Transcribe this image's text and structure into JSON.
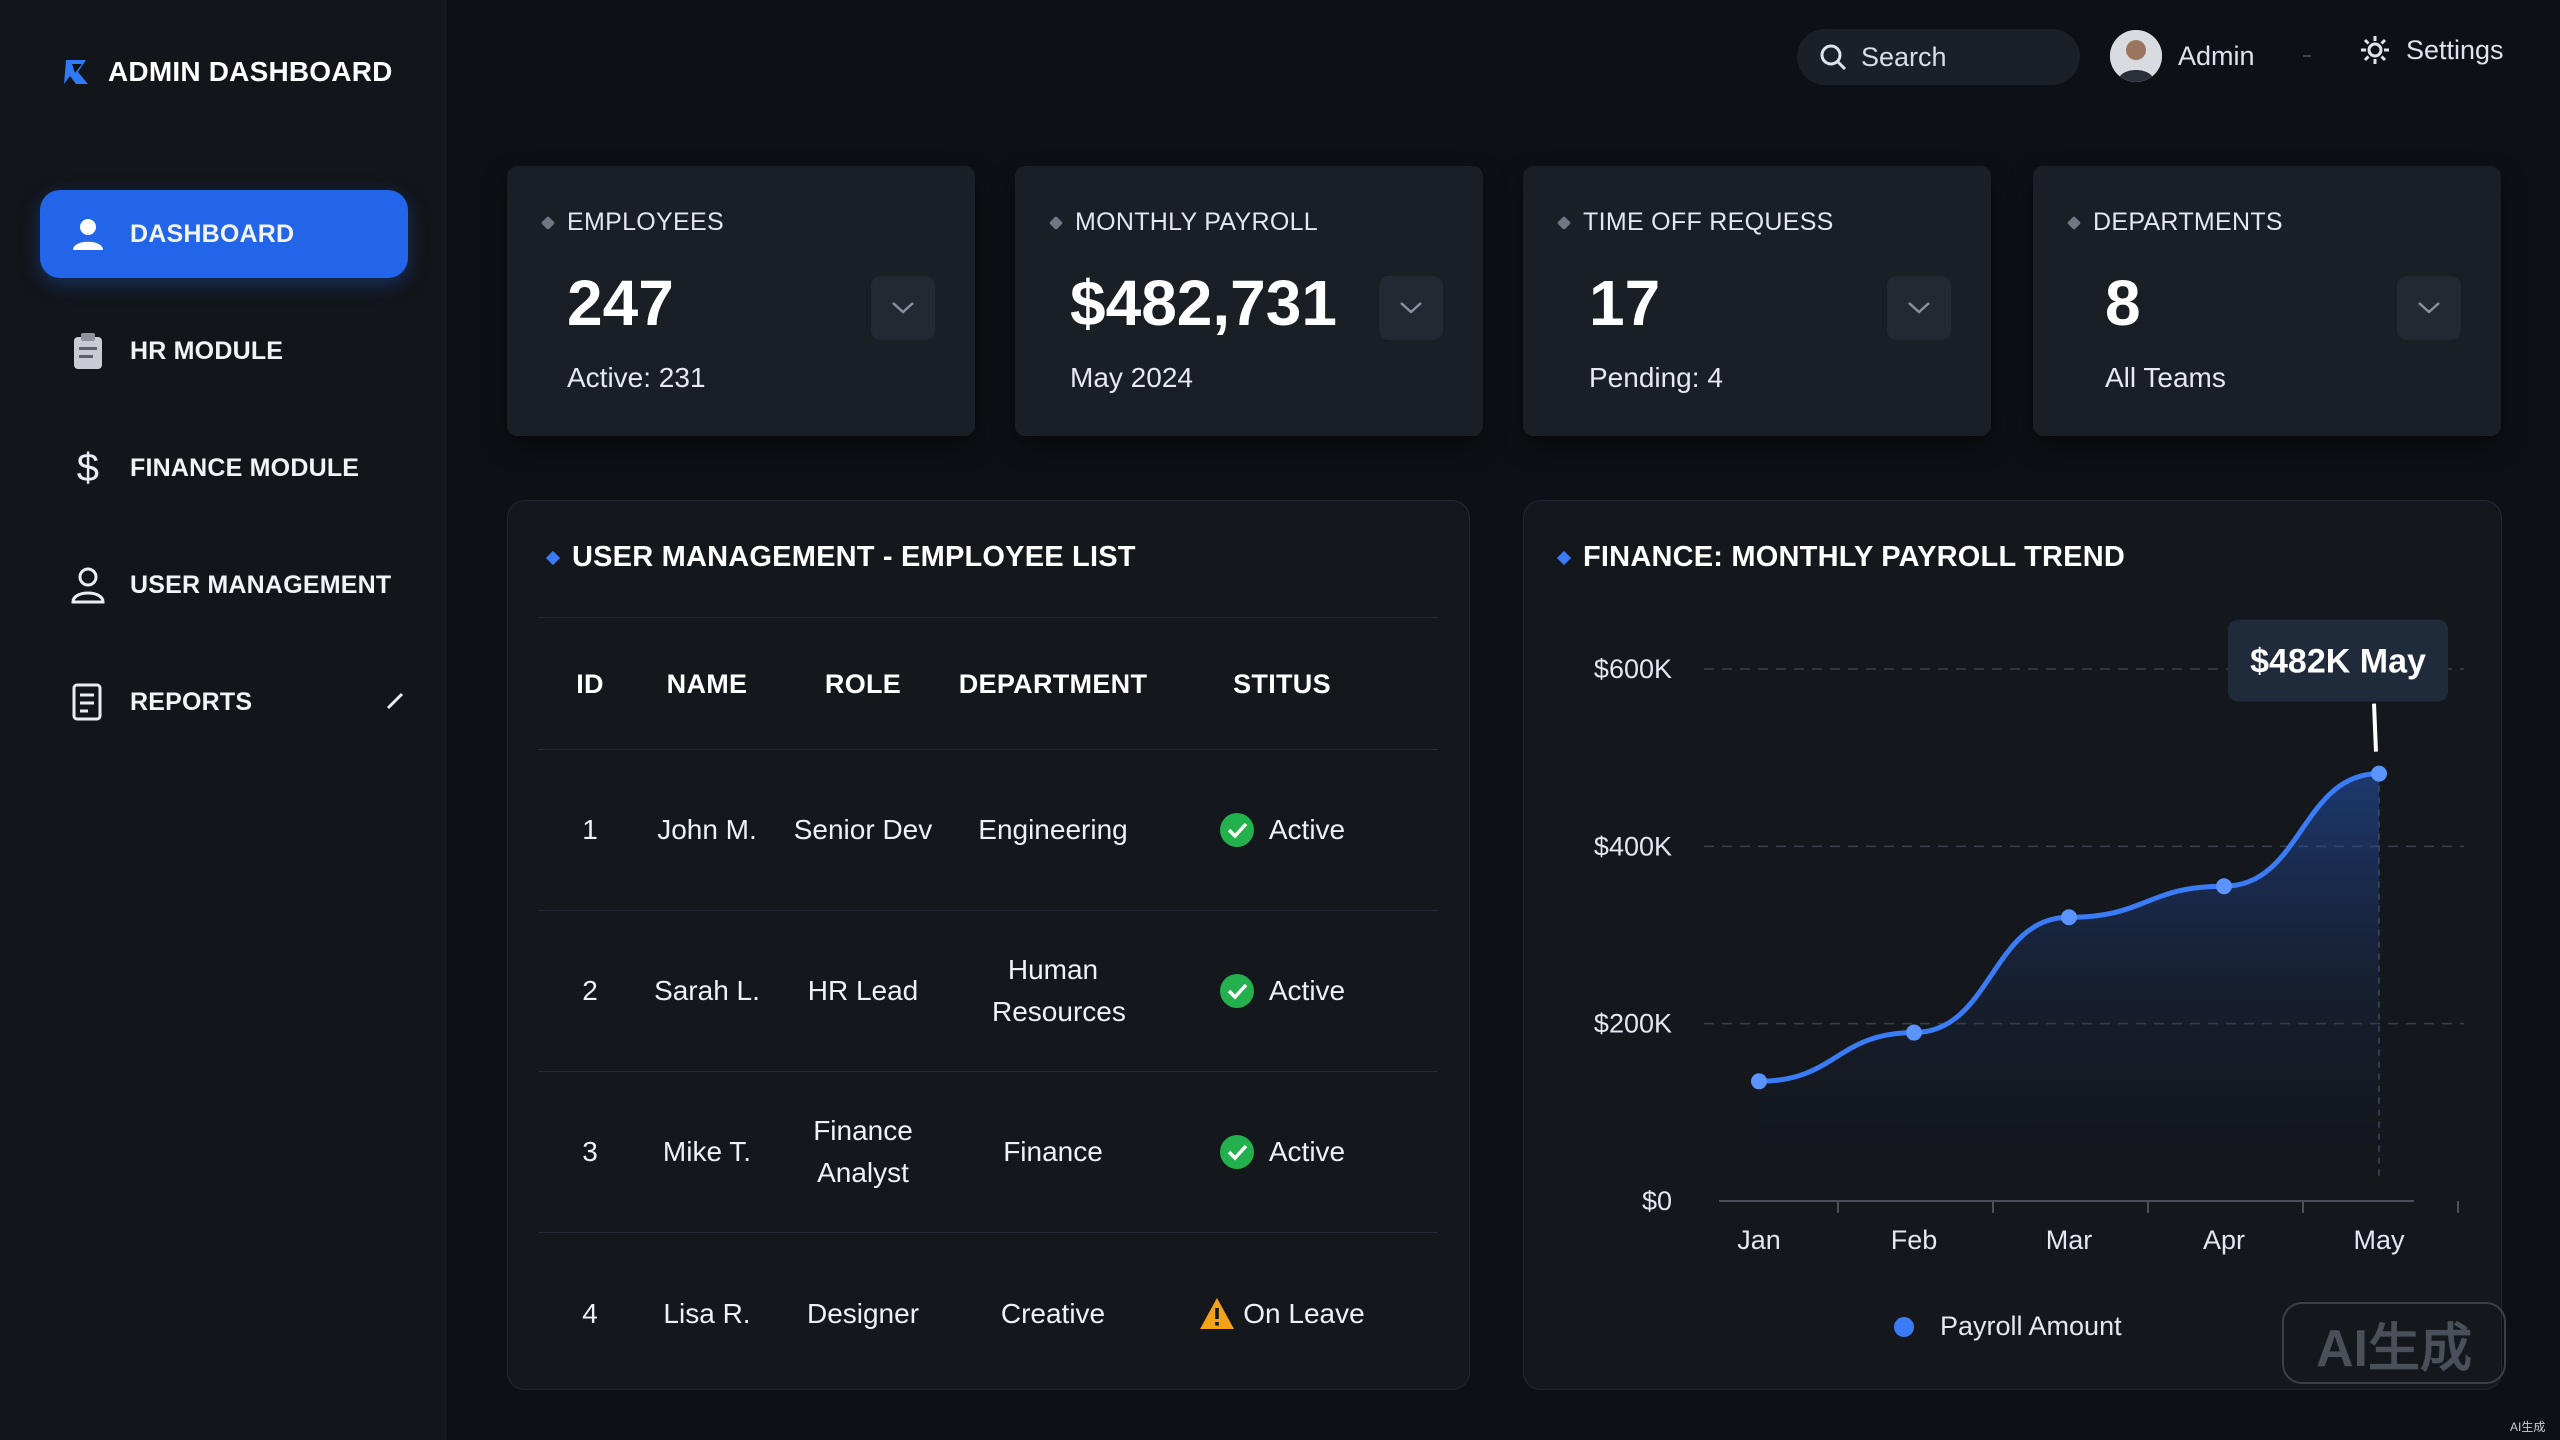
{
  "app": {
    "title": "ADMIN DASHBOARD",
    "brand_color": "#2365e8"
  },
  "sidebar": {
    "items": [
      {
        "label": "DASHBOARD",
        "icon": "user-icon",
        "active": true
      },
      {
        "label": "HR MODULE",
        "icon": "clipboard-icon",
        "active": false
      },
      {
        "label": "FINANCE MODULE",
        "icon": "dollar-icon",
        "active": false
      },
      {
        "label": "USER MANAGEMENT",
        "icon": "user-outline-icon",
        "active": false
      },
      {
        "label": "REPORTS",
        "icon": "report-icon",
        "active": false
      }
    ]
  },
  "topbar": {
    "search_label": "Search",
    "user_label": "Admin",
    "settings_label": "Settings"
  },
  "stats": [
    {
      "label": "EMPLOYEES",
      "value": "247",
      "sub": "Active: 231"
    },
    {
      "label": "MONTHLY PAYROLL",
      "value": "$482,731",
      "sub": "May 2024"
    },
    {
      "label": "TIME OFF REQUESS",
      "value": "17",
      "sub": "Pending: 4"
    },
    {
      "label": "DEPARTMENTS",
      "value": "8",
      "sub": "All Teams"
    }
  ],
  "employee_table": {
    "title": "USER MANAGEMENT - EMPLOYEE LIST",
    "headers": [
      "ID",
      "NAME",
      "ROLE",
      "DEPARTMENT",
      "STITUS"
    ],
    "rows": [
      {
        "id": "1",
        "name": "John M.",
        "role": "Senior Dev",
        "dept": "Engineering",
        "status": "Active",
        "status_type": "ok"
      },
      {
        "id": "2",
        "name": "Sarah L.",
        "role": "HR Lead",
        "dept": "Human Resources",
        "status": "Active",
        "status_type": "ok"
      },
      {
        "id": "3",
        "name": "Mike T.",
        "role": "Finance Analyst",
        "dept": "Finance",
        "status": "Active",
        "status_type": "ok"
      },
      {
        "id": "4",
        "name": "Lisa R.",
        "role": "Designer",
        "dept": "Creative",
        "status": "On Leave",
        "status_type": "warn"
      }
    ]
  },
  "finance_panel": {
    "title": "FINANCE: MONTHLY PAYROLL TREND"
  },
  "chart_data": {
    "type": "line",
    "title": "FINANCE: MONTHLY PAYROLL TREND",
    "categories": [
      "Jan",
      "Feb",
      "Mar",
      "Apr",
      "May"
    ],
    "series": [
      {
        "name": "Payroll Amount",
        "values": [
          135000,
          190000,
          320000,
          355000,
          482000
        ],
        "color": "#3b7cf6"
      }
    ],
    "y_ticks": [
      "$0",
      "$200K",
      "$400K",
      "$600K"
    ],
    "ylim": [
      0,
      600000
    ],
    "grid": true,
    "legend": "bottom",
    "annotation": "$482K May"
  },
  "watermark": "AI生成",
  "corner_mark": "AI生成"
}
